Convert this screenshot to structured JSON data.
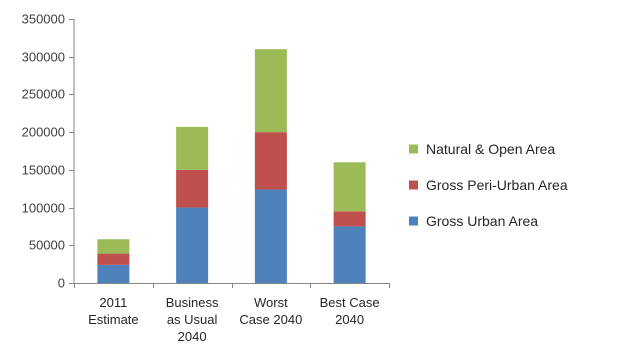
{
  "chart_data": {
    "type": "bar",
    "stacked": true,
    "categories": [
      [
        "2011",
        "Estimate"
      ],
      [
        "Business",
        "as Usual",
        "2040"
      ],
      [
        "Worst",
        "Case 2040"
      ],
      [
        "Best Case",
        "2040"
      ]
    ],
    "series": [
      {
        "name": "Gross Urban Area",
        "color": "#4f81bd",
        "values": [
          24000,
          100000,
          124000,
          75000
        ]
      },
      {
        "name": "Gross Peri-Urban Area",
        "color": "#c0504d",
        "values": [
          15000,
          50000,
          76000,
          20000
        ]
      },
      {
        "name": "Natural & Open Area",
        "color": "#9bbb59",
        "values": [
          19000,
          57000,
          110000,
          65000
        ]
      }
    ],
    "ylim": [
      0,
      350000
    ],
    "y_ticks": [
      "0",
      "50000",
      "100000",
      "150000",
      "200000",
      "250000",
      "300000",
      "350000"
    ],
    "title": "",
    "xlabel": "",
    "ylabel": "",
    "grid": false,
    "legend_position": "right",
    "legend_order": [
      "Natural & Open Area",
      "Gross Peri-Urban Area",
      "Gross Urban Area"
    ]
  }
}
